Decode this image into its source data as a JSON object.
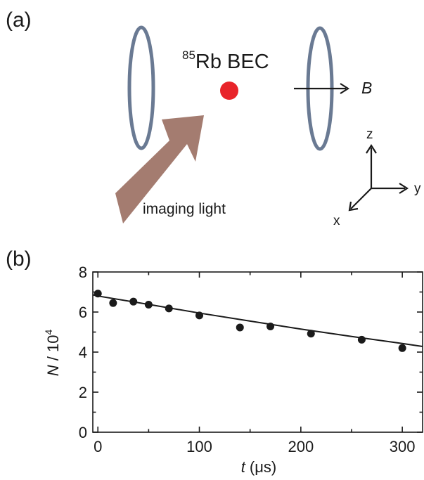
{
  "panel_a": {
    "label": "(a)",
    "bec_label_sup": "85",
    "bec_label_main": "Rb BEC",
    "field_label": "B",
    "light_label": "imaging light",
    "axis_z": "z",
    "axis_y": "y",
    "axis_x": "x",
    "colors": {
      "coil": "#6a7a93",
      "bec": "#e8242a",
      "light": "#a47c70"
    }
  },
  "panel_b": {
    "label": "(b)"
  },
  "chart_data": {
    "type": "scatter",
    "xlabel_var": "t",
    "xlabel_unit": "(μs)",
    "ylabel_var": "N",
    "ylabel_unit": " / 10",
    "ylabel_sup": "4",
    "xlim": [
      -5,
      320
    ],
    "ylim": [
      0,
      8
    ],
    "xticks": [
      0,
      100,
      200,
      300
    ],
    "yticks": [
      0,
      2,
      4,
      6,
      8
    ],
    "grid": false,
    "series": [
      {
        "kind": "points",
        "x": [
          0,
          15,
          35,
          50,
          70,
          100,
          140,
          170,
          210,
          260,
          300
        ],
        "y": [
          6.92,
          6.45,
          6.52,
          6.37,
          6.18,
          5.83,
          5.23,
          5.28,
          4.92,
          4.62,
          4.2
        ]
      },
      {
        "kind": "fit",
        "x": [
          -5,
          0,
          50,
          100,
          150,
          200,
          250,
          300,
          320
        ],
        "y": [
          6.86,
          6.8,
          6.38,
          5.95,
          5.55,
          5.15,
          4.78,
          4.43,
          4.28
        ]
      }
    ]
  }
}
